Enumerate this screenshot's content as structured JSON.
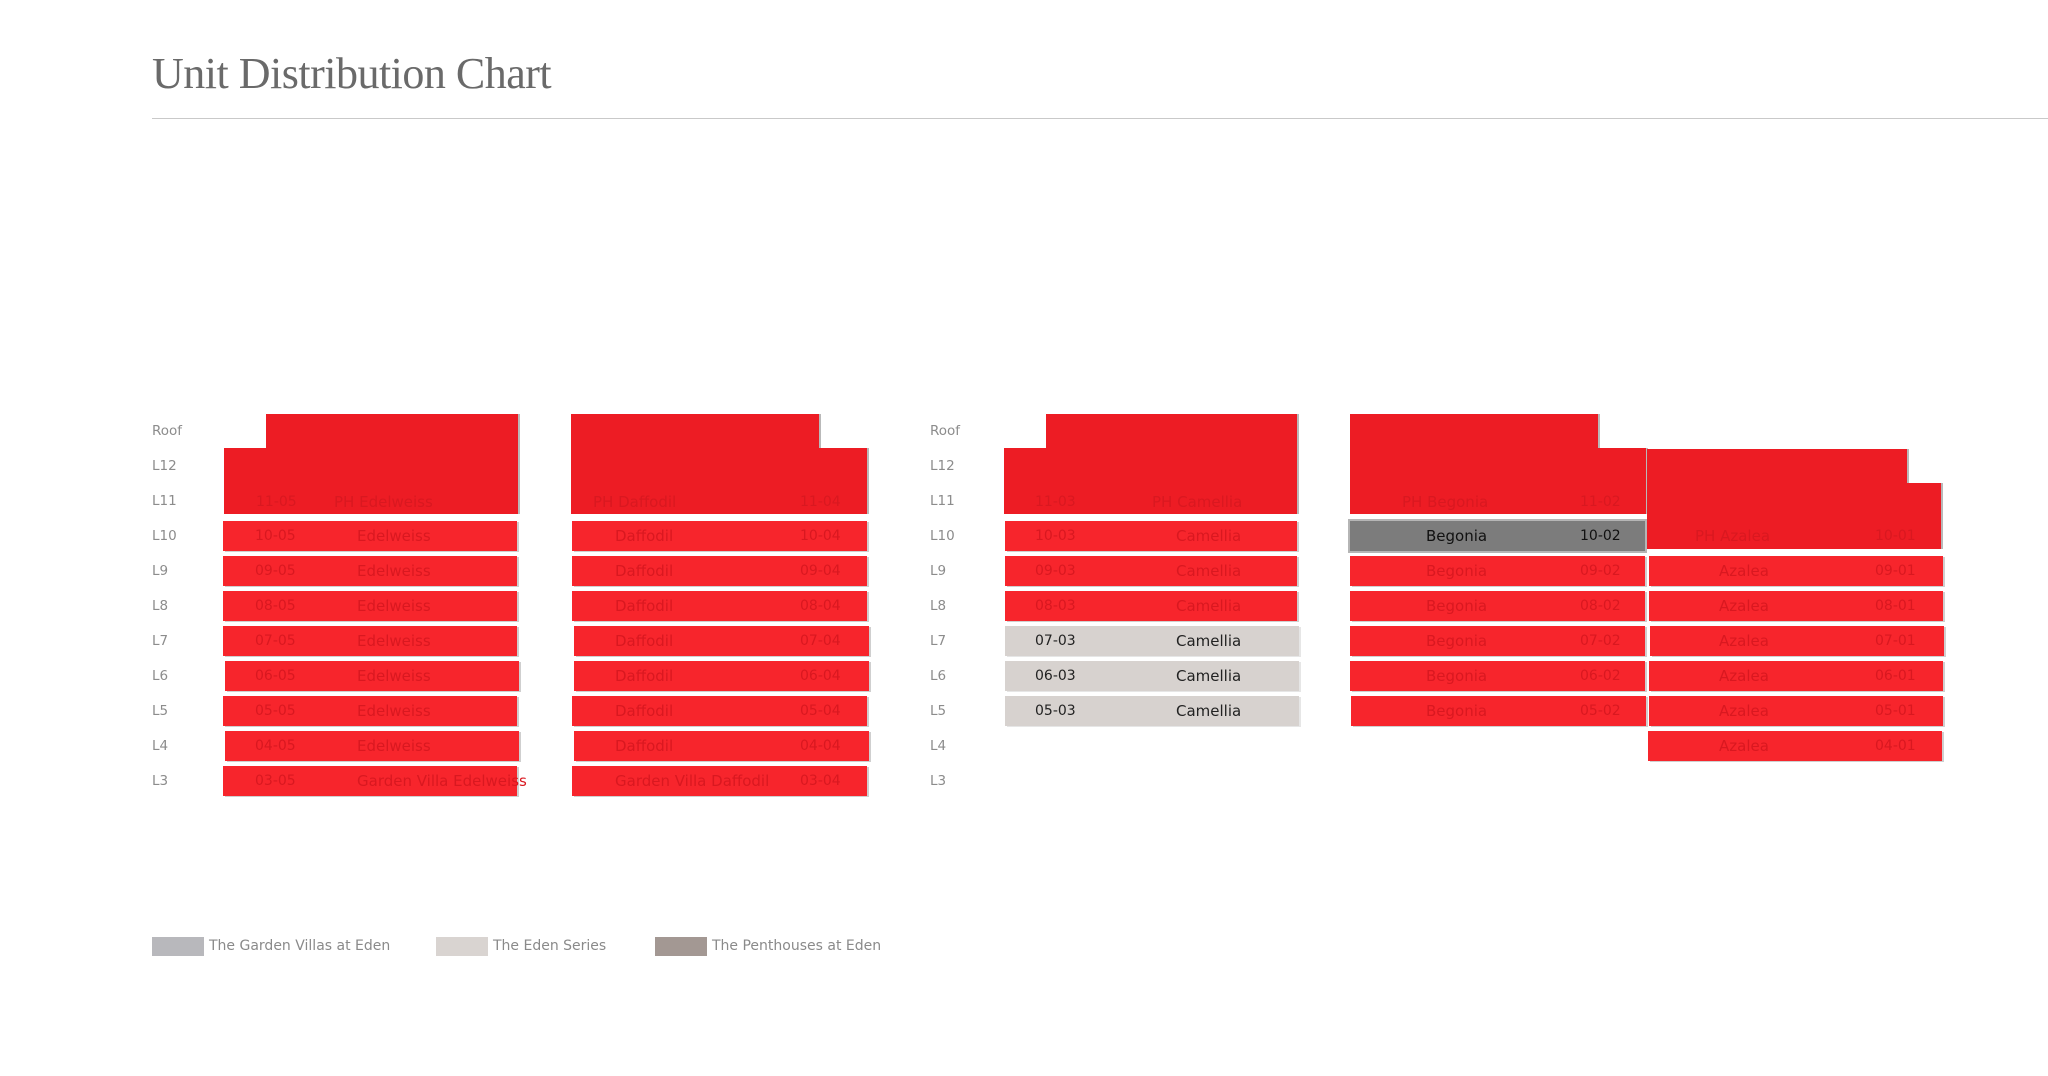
{
  "title": "Unit Distribution Chart",
  "colors": {
    "sold_red": "#ed1c24",
    "available_eden_series": "#d7d2cf",
    "selected_penthouse": "#7c7c7c",
    "legend_garden_villas": "#b8b8bc",
    "legend_eden_series": "#d9d4d1",
    "legend_penthouses": "#a39893"
  },
  "block_a_levels": [
    "Roof",
    "L12",
    "L11",
    "L10",
    "L9",
    "L8",
    "L7",
    "L6",
    "L5",
    "L4",
    "L3"
  ],
  "block_b_levels": [
    "Roof",
    "L12",
    "L11",
    "L10",
    "L9",
    "L8",
    "L7",
    "L6",
    "L5",
    "L4",
    "L3"
  ],
  "stacks": {
    "edelweiss": {
      "penthouse": {
        "unit": "11-05",
        "name": "PH Edelweiss"
      },
      "rows": [
        {
          "unit": "10-05",
          "name": "Edelweiss"
        },
        {
          "unit": "09-05",
          "name": "Edelweiss"
        },
        {
          "unit": "08-05",
          "name": "Edelweiss"
        },
        {
          "unit": "07-05",
          "name": "Edelweiss"
        },
        {
          "unit": "06-05",
          "name": "Edelweiss"
        },
        {
          "unit": "05-05",
          "name": "Edelweiss"
        },
        {
          "unit": "04-05",
          "name": "Edelweiss"
        },
        {
          "unit": "03-05",
          "name": "Garden Villa Edelweiss"
        }
      ]
    },
    "daffodil": {
      "penthouse": {
        "unit": "11-04",
        "name": "PH Daffodil"
      },
      "rows": [
        {
          "unit": "10-04",
          "name": "Daffodil"
        },
        {
          "unit": "09-04",
          "name": "Daffodil"
        },
        {
          "unit": "08-04",
          "name": "Daffodil"
        },
        {
          "unit": "07-04",
          "name": "Daffodil"
        },
        {
          "unit": "06-04",
          "name": "Daffodil"
        },
        {
          "unit": "05-04",
          "name": "Daffodil"
        },
        {
          "unit": "04-04",
          "name": "Daffodil"
        },
        {
          "unit": "03-04",
          "name": "Garden Villa Daffodil"
        }
      ]
    },
    "camellia": {
      "penthouse": {
        "unit": "11-03",
        "name": "PH Camellia"
      },
      "rows": [
        {
          "unit": "10-03",
          "name": "Camellia"
        },
        {
          "unit": "09-03",
          "name": "Camellia"
        },
        {
          "unit": "08-03",
          "name": "Camellia"
        },
        {
          "unit": "07-03",
          "name": "Camellia"
        },
        {
          "unit": "06-03",
          "name": "Camellia"
        },
        {
          "unit": "05-03",
          "name": "Camellia"
        }
      ]
    },
    "begonia": {
      "penthouse": {
        "unit": "11-02",
        "name": "PH Begonia"
      },
      "rows": [
        {
          "unit": "10-02",
          "name": "Begonia"
        },
        {
          "unit": "09-02",
          "name": "Begonia"
        },
        {
          "unit": "08-02",
          "name": "Begonia"
        },
        {
          "unit": "07-02",
          "name": "Begonia"
        },
        {
          "unit": "06-02",
          "name": "Begonia"
        },
        {
          "unit": "05-02",
          "name": "Begonia"
        }
      ]
    },
    "azalea": {
      "penthouse": {
        "unit": "10-01",
        "name": "PH Azalea"
      },
      "rows": [
        {
          "unit": "09-01",
          "name": "Azalea"
        },
        {
          "unit": "08-01",
          "name": "Azalea"
        },
        {
          "unit": "07-01",
          "name": "Azalea"
        },
        {
          "unit": "06-01",
          "name": "Azalea"
        },
        {
          "unit": "05-01",
          "name": "Azalea"
        },
        {
          "unit": "04-01",
          "name": "Azalea"
        }
      ]
    }
  },
  "legend": [
    {
      "label": "The Garden Villas at Eden"
    },
    {
      "label": "The Eden Series"
    },
    {
      "label": "The Penthouses at Eden"
    }
  ]
}
